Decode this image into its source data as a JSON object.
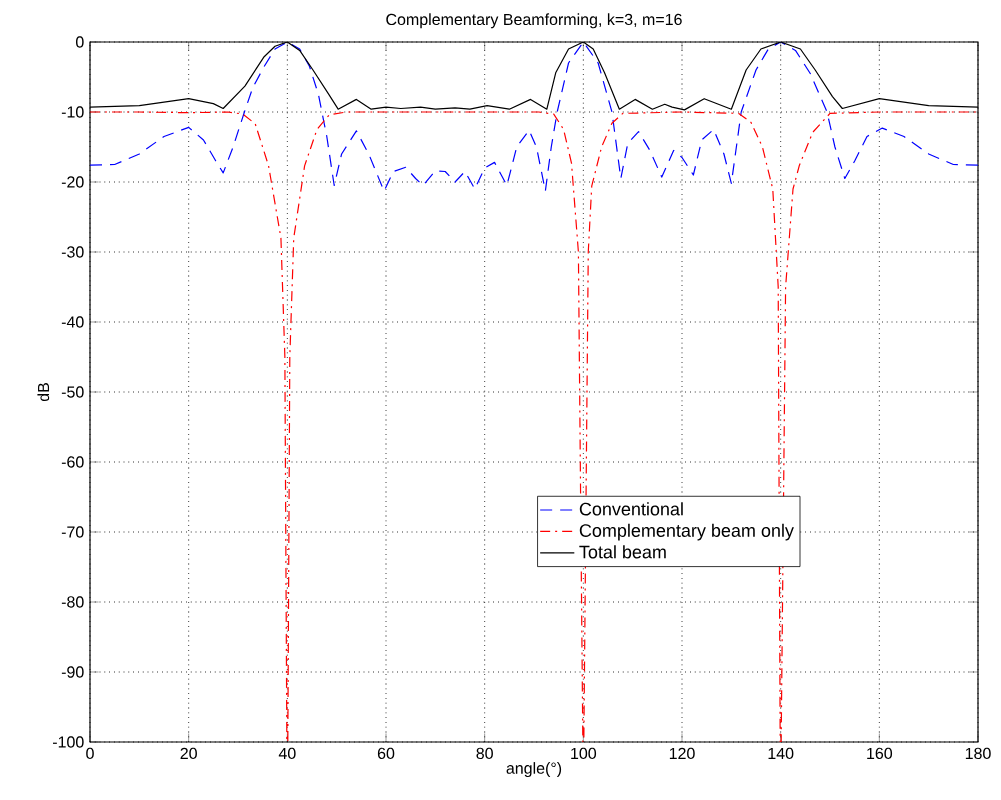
{
  "chart_data": {
    "type": "line",
    "title": "Complementary Beamforming, k=3, m=16",
    "xlabel": "angle(°)",
    "ylabel": "dB",
    "xlim": [
      0,
      180
    ],
    "ylim": [
      -100,
      0
    ],
    "xticks": [
      0,
      20,
      40,
      60,
      80,
      100,
      120,
      140,
      160,
      180
    ],
    "yticks": [
      -100,
      -90,
      -80,
      -70,
      -60,
      -50,
      -40,
      -30,
      -20,
      -10,
      0
    ],
    "grid": true,
    "legend": "bottom",
    "series": [
      {
        "name": "Conventional",
        "color": "#0000ff",
        "line_style": "dashed",
        "x": [
          0,
          5,
          10,
          15,
          20,
          23,
          25.5,
          27,
          29,
          31.3,
          33,
          35.3,
          37.5,
          40,
          42.5,
          44.5,
          46.3,
          48,
          49.5,
          51,
          54,
          56.5,
          59.6,
          61.5,
          64,
          66,
          67.5,
          70,
          72,
          74,
          76,
          78,
          80,
          82,
          84.5,
          86.5,
          89,
          90.5,
          92.3,
          93.5,
          94.7,
          97,
          100,
          103,
          105.8,
          107.6,
          109,
          111.2,
          113.5,
          115.9,
          118.3,
          120,
          122.3,
          124,
          126.4,
          128.5,
          130,
          132,
          135,
          137.5,
          140,
          143,
          146,
          149.4,
          151,
          153,
          155,
          157.5,
          160.6,
          165,
          170,
          175,
          180
        ],
        "values": [
          -17.6,
          -17.5,
          -16,
          -13.5,
          -12.2,
          -14,
          -17,
          -18.7,
          -15,
          -10,
          -6.5,
          -3.5,
          -1,
          0,
          -1,
          -3.5,
          -7.5,
          -13.5,
          -20.5,
          -16,
          -12.7,
          -16,
          -21.3,
          -18.5,
          -17.9,
          -19.5,
          -20.5,
          -18.4,
          -18.5,
          -20,
          -18.5,
          -21,
          -18,
          -17.2,
          -20.5,
          -15,
          -12.6,
          -15,
          -21.3,
          -15,
          -10,
          -3,
          0,
          -3,
          -10,
          -19.5,
          -14.5,
          -12.8,
          -15.5,
          -19.3,
          -15.5,
          -16.5,
          -19,
          -14,
          -12.5,
          -16,
          -20.2,
          -10,
          -4,
          -1,
          0,
          -1.2,
          -4.5,
          -10,
          -15,
          -19.5,
          -17,
          -13.5,
          -12.3,
          -13.5,
          -16,
          -17.5,
          -17.6
        ]
      },
      {
        "name": "Complementary beam only",
        "color": "#ff0000",
        "line_style": "dashdot",
        "x": [
          0,
          10,
          20,
          28,
          31,
          33.5,
          36.2,
          38.7,
          39.5,
          39.9,
          40.1,
          40.5,
          41.3,
          43.5,
          46,
          48.5,
          52,
          60,
          70,
          80,
          91,
          94,
          96,
          97.6,
          99,
          99.9,
          100.1,
          101,
          101.7,
          103.7,
          105.8,
          108,
          120,
          131.5,
          134,
          136.3,
          138.4,
          139.5,
          139.9,
          140.1,
          141,
          142.5,
          143.8,
          146.5,
          150,
          160,
          170,
          180
        ],
        "values": [
          -10,
          -10,
          -10.1,
          -10,
          -10.3,
          -11.7,
          -17.7,
          -28,
          -45,
          -100,
          -100,
          -45,
          -28,
          -17.7,
          -12.5,
          -10.4,
          -10,
          -10,
          -10,
          -10,
          -10,
          -10.3,
          -12.5,
          -17.3,
          -30,
          -100,
          -100,
          -30,
          -20.6,
          -15,
          -11.6,
          -10.2,
          -10,
          -10.2,
          -11.5,
          -15,
          -21,
          -35,
          -100,
          -100,
          -35,
          -21,
          -17.6,
          -12.9,
          -10.2,
          -10,
          -10,
          -10
        ]
      },
      {
        "name": "Total beam",
        "color": "#000000",
        "line_style": "solid",
        "x": [
          0,
          10,
          20,
          25,
          27,
          31.4,
          35.3,
          37.5,
          40,
          42.5,
          45.2,
          48.5,
          50.3,
          54,
          57,
          60,
          63,
          67,
          70,
          74,
          77,
          80.5,
          85,
          89.3,
          92.6,
          94.4,
          97,
          100,
          102,
          104.3,
          107.3,
          110.5,
          114,
          116.5,
          118,
          120.5,
          124.5,
          130,
          133,
          136,
          140,
          144,
          147,
          150.5,
          152.5,
          160,
          170,
          180
        ],
        "values": [
          -9.3,
          -9.1,
          -8.1,
          -8.8,
          -9.5,
          -6.3,
          -2.1,
          -0.6,
          0,
          -1.2,
          -4,
          -7.6,
          -9.6,
          -8.2,
          -9.6,
          -9.3,
          -9.5,
          -9.3,
          -9.6,
          -9.4,
          -9.6,
          -9.1,
          -9.6,
          -8.2,
          -9.6,
          -4.4,
          -1,
          0,
          -1,
          -4.4,
          -9.6,
          -8.2,
          -9.6,
          -8.9,
          -9.3,
          -9.7,
          -8.1,
          -9.6,
          -4,
          -1,
          0,
          -1,
          -4,
          -7.8,
          -9.5,
          -8.1,
          -9.1,
          -9.3
        ]
      }
    ]
  }
}
